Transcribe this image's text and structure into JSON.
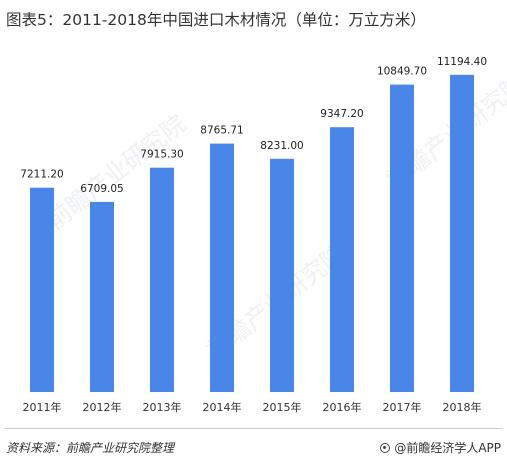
{
  "title": "图表5：2011-2018年中国进口木材情况（单位：万立方米）",
  "chart_data": {
    "type": "bar",
    "title": "图表5：2011-2018年中国进口木材情况（单位：万立方米）",
    "categories": [
      "2011年",
      "2012年",
      "2013年",
      "2014年",
      "2015年",
      "2016年",
      "2017年",
      "2018年"
    ],
    "values": [
      7211.2,
      6709.05,
      7915.3,
      8765.71,
      8231.0,
      9347.2,
      10849.7,
      11194.4
    ],
    "value_labels": [
      "7211.20",
      "6709.05",
      "7915.30",
      "8765.71",
      "8231.00",
      "9347.20",
      "10849.70",
      "11194.40"
    ],
    "ylim": [
      0,
      12000
    ],
    "bar_color": "#4a86e8",
    "grid": false,
    "legend": "none"
  },
  "watermark": "前瞻产业研究院",
  "footer": {
    "source": "资料来源：前瞻产业研究院整理",
    "brand": "@前瞻经济学人APP"
  }
}
